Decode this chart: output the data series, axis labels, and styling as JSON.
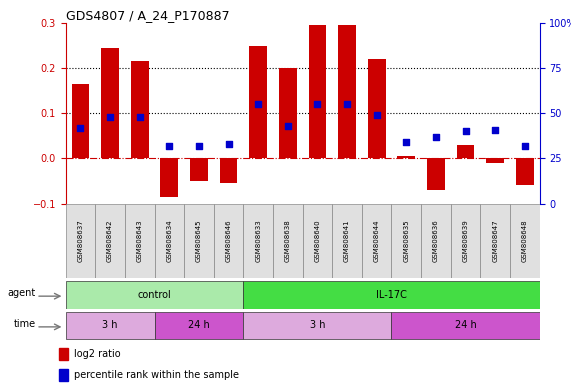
{
  "title": "GDS4807 / A_24_P170887",
  "samples": [
    "GSM808637",
    "GSM808642",
    "GSM808643",
    "GSM808634",
    "GSM808645",
    "GSM808646",
    "GSM808633",
    "GSM808638",
    "GSM808640",
    "GSM808641",
    "GSM808644",
    "GSM808635",
    "GSM808636",
    "GSM808639",
    "GSM808647",
    "GSM808648"
  ],
  "log2_ratio": [
    0.165,
    0.245,
    0.215,
    -0.085,
    -0.05,
    -0.055,
    0.25,
    0.2,
    0.295,
    0.295,
    0.22,
    0.005,
    -0.07,
    0.03,
    -0.01,
    -0.06
  ],
  "percentile": [
    42,
    48,
    48,
    32,
    32,
    33,
    55,
    43,
    55,
    55,
    49,
    34,
    37,
    40,
    41,
    32
  ],
  "bar_color": "#cc0000",
  "dot_color": "#0000cc",
  "ylim_left": [
    -0.1,
    0.3
  ],
  "ylim_right": [
    0,
    100
  ],
  "yticks_left": [
    -0.1,
    0.0,
    0.1,
    0.2,
    0.3
  ],
  "yticks_right": [
    0,
    25,
    50,
    75,
    100
  ],
  "hlines": [
    0.1,
    0.2
  ],
  "agent_groups": [
    {
      "label": "control",
      "start": 0,
      "end": 6,
      "color": "#aaeaaa"
    },
    {
      "label": "IL-17C",
      "start": 6,
      "end": 16,
      "color": "#44dd44"
    }
  ],
  "time_groups": [
    {
      "label": "3 h",
      "start": 0,
      "end": 3,
      "color": "#ddaadd"
    },
    {
      "label": "24 h",
      "start": 3,
      "end": 6,
      "color": "#cc55cc"
    },
    {
      "label": "3 h",
      "start": 6,
      "end": 11,
      "color": "#ddaadd"
    },
    {
      "label": "24 h",
      "start": 11,
      "end": 16,
      "color": "#cc55cc"
    }
  ],
  "legend_items": [
    {
      "color": "#cc0000",
      "label": "log2 ratio"
    },
    {
      "color": "#0000cc",
      "label": "percentile rank within the sample"
    }
  ],
  "label_fontsize": 7,
  "tick_fontsize": 5.5,
  "title_fontsize": 9
}
